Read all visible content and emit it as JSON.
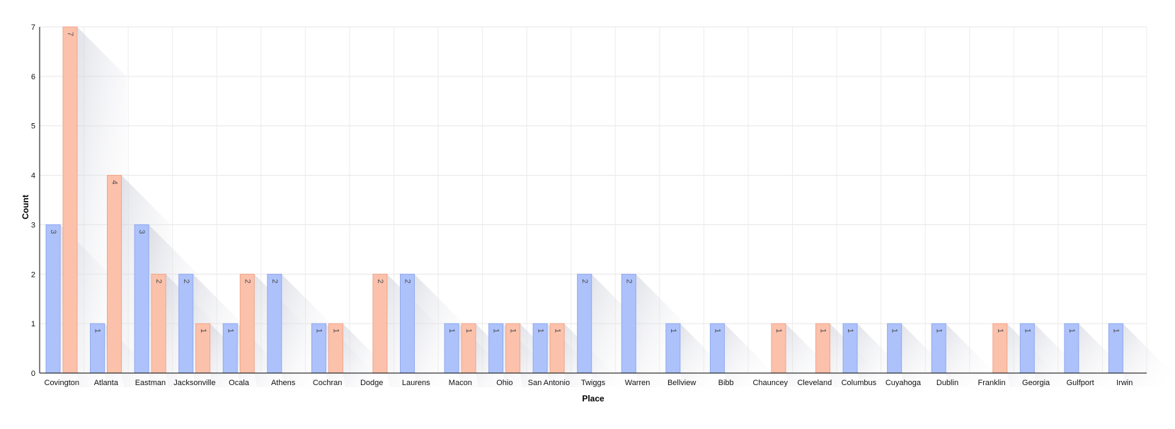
{
  "chart_data": {
    "type": "bar",
    "title": "",
    "xlabel": "Place",
    "ylabel": "Count",
    "ylim": [
      0,
      7
    ],
    "yticks": [
      0,
      1,
      2,
      3,
      4,
      5,
      6,
      7
    ],
    "grid": true,
    "legend": "none",
    "categories": [
      "Covington",
      "Atlanta",
      "Eastman",
      "Jacksonville",
      "Ocala",
      "Athens",
      "Cochran",
      "Dodge",
      "Laurens",
      "Macon",
      "Ohio",
      "San Antonio",
      "Twiggs",
      "Warren",
      "Bellview",
      "Bibb",
      "Chauncey",
      "Cleveland",
      "Columbus",
      "Cuyahoga",
      "Dublin",
      "Franklin",
      "Georgia",
      "Gulfport",
      "Irwin"
    ],
    "series": [
      {
        "color": "#adc2fb",
        "stroke": "#8fa7ef",
        "values": [
          3,
          1,
          3,
          2,
          1,
          2,
          1,
          0,
          2,
          1,
          1,
          1,
          2,
          2,
          1,
          1,
          0,
          0,
          1,
          1,
          1,
          0,
          1,
          1,
          1
        ]
      },
      {
        "color": "#fcc1ab",
        "stroke": "#f0a488",
        "values": [
          7,
          4,
          2,
          1,
          2,
          0,
          1,
          2,
          0,
          1,
          1,
          1,
          0,
          0,
          0,
          0,
          1,
          1,
          0,
          0,
          0,
          1,
          0,
          0,
          0
        ]
      }
    ]
  }
}
